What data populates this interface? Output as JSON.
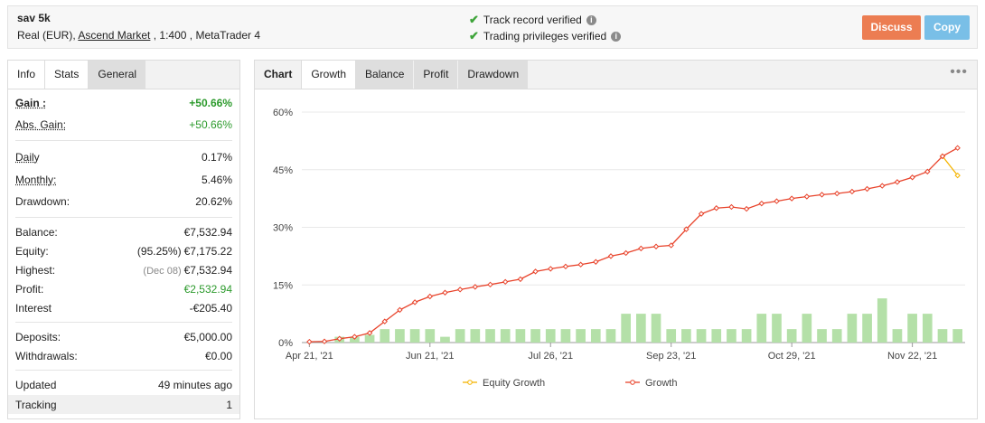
{
  "account": {
    "name": "sav 5k",
    "type": "Real (EUR),",
    "broker": "Ascend Market",
    "leverage_platform": ", 1:400 , MetaTrader 4"
  },
  "verification": {
    "track_record": "Track record verified",
    "trading_privileges": "Trading privileges verified"
  },
  "buttons": {
    "discuss": "Discuss",
    "copy": "Copy"
  },
  "stats_tabs": [
    "Info",
    "Stats",
    "General"
  ],
  "stats": {
    "gain": {
      "label": "Gain :",
      "value": "+50.66%"
    },
    "abs_gain": {
      "label": "Abs. Gain:",
      "value": "+50.66%"
    },
    "daily": {
      "label": "Daily",
      "value": "0.17%"
    },
    "monthly": {
      "label": "Monthly:",
      "value": "5.46%"
    },
    "drawdown": {
      "label": "Drawdown:",
      "value": "20.62%"
    },
    "balance": {
      "label": "Balance:",
      "value": "€7,532.94"
    },
    "equity": {
      "label": "Equity:",
      "note": "(95.25%)",
      "value": "€7,175.22"
    },
    "highest": {
      "label": "Highest:",
      "note": "(Dec 08)",
      "value": "€7,532.94"
    },
    "profit": {
      "label": "Profit:",
      "value": "€2,532.94"
    },
    "interest": {
      "label": "Interest",
      "value": "-€205.40"
    },
    "deposits": {
      "label": "Deposits:",
      "value": "€5,000.00"
    },
    "withdrawals": {
      "label": "Withdrawals:",
      "value": "€0.00"
    },
    "updated": {
      "label": "Updated",
      "value": "49 minutes ago"
    },
    "tracking": {
      "label": "Tracking",
      "value": "1"
    }
  },
  "chart_tabs": [
    "Chart",
    "Growth",
    "Balance",
    "Profit",
    "Drawdown"
  ],
  "colors": {
    "growth": "#e8432b",
    "equity": "#f5b400",
    "bars": "#b4e0a8",
    "discuss": "#ec7d52",
    "copy": "#79bfe7",
    "positive": "#2c9a2c"
  },
  "chart_data": {
    "type": "line",
    "ylim": [
      0,
      60
    ],
    "yticks": [
      "0%",
      "15%",
      "30%",
      "45%",
      "60%"
    ],
    "xticks": [
      "Apr 21, '21",
      "Jun 21, '21",
      "Jul 26, '21",
      "Sep 23, '21",
      "Oct 29, '21",
      "Nov 22, '21"
    ],
    "xtick_index": [
      0,
      8,
      16,
      24,
      32,
      40
    ],
    "series": [
      {
        "name": "Growth",
        "values": [
          0.2,
          0.3,
          1,
          1.5,
          2.5,
          5.5,
          8.5,
          10.5,
          12,
          13,
          13.8,
          14.5,
          15.1,
          15.8,
          16.5,
          18.5,
          19.2,
          19.8,
          20.3,
          21,
          22.5,
          23.3,
          24.5,
          25,
          25.3,
          29.5,
          33.5,
          35,
          35.3,
          34.8,
          36.2,
          36.8,
          37.5,
          38,
          38.5,
          38.8,
          39.3,
          40,
          40.8,
          41.8,
          43,
          44.5,
          48.5,
          50.66
        ]
      },
      {
        "name": "Equity Growth",
        "values": [
          null,
          null,
          null,
          null,
          null,
          null,
          null,
          null,
          null,
          null,
          null,
          null,
          null,
          null,
          null,
          null,
          null,
          null,
          null,
          null,
          null,
          null,
          null,
          null,
          null,
          null,
          null,
          null,
          null,
          null,
          null,
          null,
          null,
          null,
          null,
          null,
          null,
          null,
          null,
          null,
          null,
          null,
          48.5,
          43.5
        ]
      }
    ],
    "bars": [
      0,
      0,
      1.5,
      1.5,
      2,
      3.5,
      3.5,
      3.5,
      3.5,
      1.5,
      3.5,
      3.5,
      3.5,
      3.5,
      3.5,
      3.5,
      3.5,
      3.5,
      3.5,
      3.5,
      3.5,
      7.5,
      7.5,
      7.5,
      3.5,
      3.5,
      3.5,
      3.5,
      3.5,
      3.5,
      7.5,
      7.5,
      3.5,
      7.5,
      3.5,
      3.5,
      7.5,
      7.5,
      11.5,
      3.5,
      7.5,
      7.5,
      3.5,
      3.5
    ],
    "legend": [
      "Equity Growth",
      "Growth"
    ]
  }
}
